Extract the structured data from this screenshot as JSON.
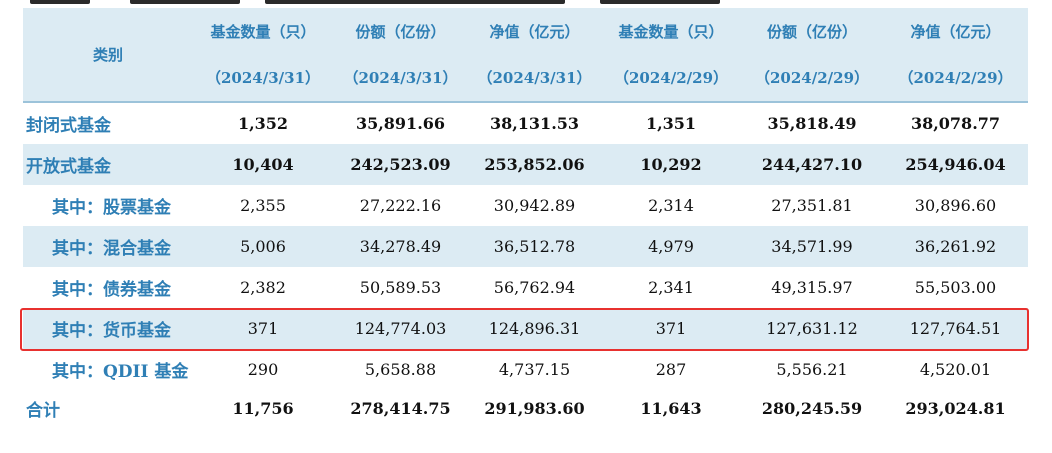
{
  "table": {
    "category_header": "类别",
    "columns": [
      {
        "label": "基金数量（只）",
        "date": "（2024/3/31）"
      },
      {
        "label": "份额（亿份）",
        "date": "（2024/3/31）"
      },
      {
        "label": "净值（亿元）",
        "date": "（2024/3/31）"
      },
      {
        "label": "基金数量（只）",
        "date": "（2024/2/29）"
      },
      {
        "label": "份额（亿份）",
        "date": "（2024/2/29）"
      },
      {
        "label": "净值（亿元）",
        "date": "（2024/2/29）"
      }
    ],
    "rows": [
      {
        "category": "封闭式基金",
        "values": [
          "1,352",
          "35,891.66",
          "38,131.53",
          "1,351",
          "35,818.49",
          "38,078.77"
        ]
      },
      {
        "category": "开放式基金",
        "values": [
          "10,404",
          "242,523.09",
          "253,852.06",
          "10,292",
          "244,427.10",
          "254,946.04"
        ]
      },
      {
        "category": "其中：股票基金",
        "values": [
          "2,355",
          "27,222.16",
          "30,942.89",
          "2,314",
          "27,351.81",
          "30,896.60"
        ]
      },
      {
        "category": "其中：混合基金",
        "values": [
          "5,006",
          "34,278.49",
          "36,512.78",
          "4,979",
          "34,571.99",
          "36,261.92"
        ]
      },
      {
        "category": "其中：债券基金",
        "values": [
          "2,382",
          "50,589.53",
          "56,762.94",
          "2,341",
          "49,315.97",
          "55,503.00"
        ]
      },
      {
        "category": "其中：货币基金",
        "values": [
          "371",
          "124,774.03",
          "124,896.31",
          "371",
          "127,631.12",
          "127,764.51"
        ]
      },
      {
        "category": "其中：QDII 基金",
        "values": [
          "290",
          "5,658.88",
          "4,737.15",
          "287",
          "5,556.21",
          "4,520.01"
        ]
      },
      {
        "category": "合计",
        "values": [
          "11,756",
          "278,414.75",
          "291,983.60",
          "11,643",
          "280,245.59",
          "293,024.81"
        ]
      }
    ]
  },
  "colors": {
    "header_text": "#2f7fb5",
    "shade": "#dcebf3",
    "highlight_border": "#e8312f"
  }
}
